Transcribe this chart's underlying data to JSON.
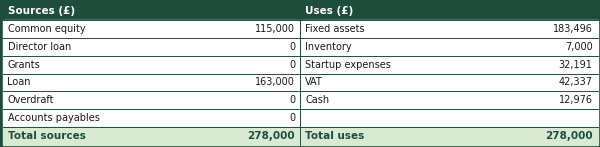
{
  "header_bg": "#1e4d3b",
  "header_text_color": "#ffffff",
  "row_bg": "#ffffff",
  "total_bg": "#d9ead3",
  "total_text_color": "#1e4d3b",
  "border_color": "#1e4d3b",
  "text_color": "#1a1a1a",
  "header_left": "Sources (£)",
  "header_right": "Uses (£)",
  "sources": [
    [
      "Common equity",
      "115,000"
    ],
    [
      "Director loan",
      "0"
    ],
    [
      "Grants",
      "0"
    ],
    [
      "Loan",
      "163,000"
    ],
    [
      "Overdraft",
      "0"
    ],
    [
      "Accounts payables",
      "0"
    ]
  ],
  "uses": [
    [
      "Fixed assets",
      "183,496"
    ],
    [
      "Inventory",
      "7,000"
    ],
    [
      "Startup expenses",
      "32,191"
    ],
    [
      "VAT",
      "42,337"
    ],
    [
      "Cash",
      "12,976"
    ],
    [
      "",
      ""
    ]
  ],
  "total_sources_label": "Total sources",
  "total_sources_value": "278,000",
  "total_uses_label": "Total uses",
  "total_uses_value": "278,000"
}
